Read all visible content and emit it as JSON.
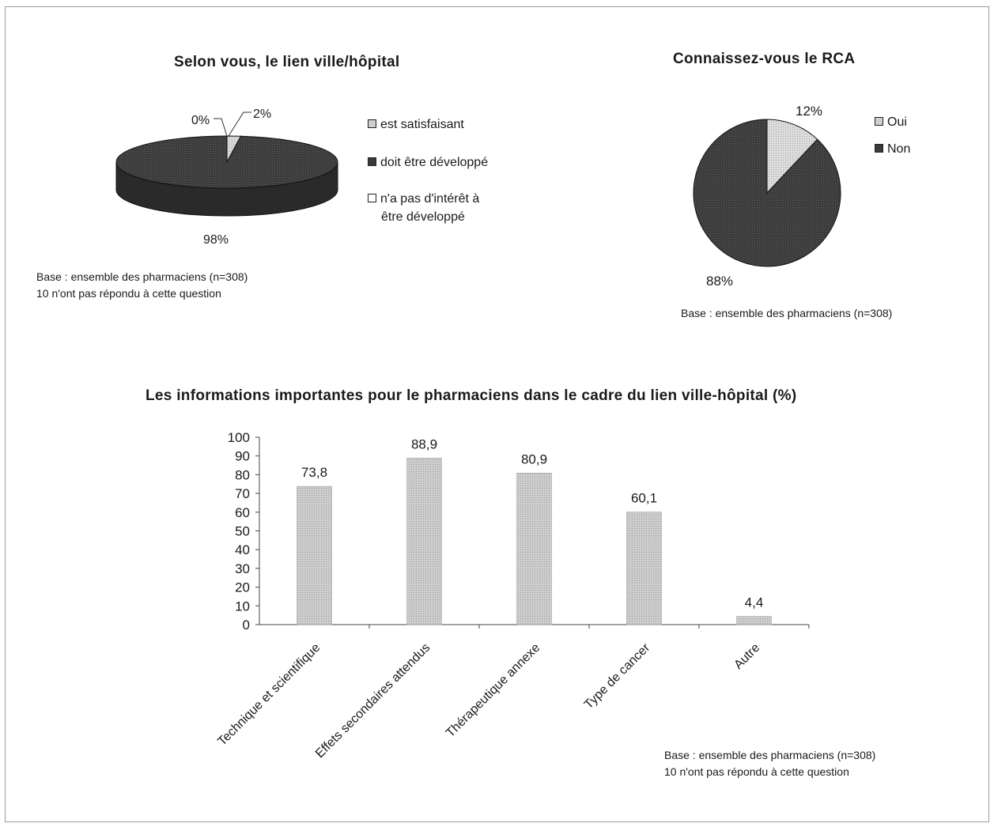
{
  "colors": {
    "light": "#cfcfcf",
    "dark": "#3a3a3a",
    "white": "#ffffff",
    "bar": "#c4c4c4"
  },
  "chart_data": [
    {
      "type": "pie",
      "title": "Selon vous, le lien ville/hôpital",
      "categories": [
        "est satisfaisant",
        "doit être développé",
        "n'a pas d'intérêt à être développé"
      ],
      "values": [
        2,
        98,
        0
      ],
      "data_labels": [
        "2%",
        "98%",
        "0%"
      ],
      "legend_labels": [
        "est satisfaisant",
        "doit être développé",
        "n'a pas d'intérêt à",
        "être développé"
      ],
      "legend_position": "right",
      "note_lines": [
        "Base : ensemble des pharmaciens (n=308)",
        "10 n'ont pas répondu à cette question"
      ]
    },
    {
      "type": "pie",
      "title": "Connaissez-vous le RCA",
      "categories": [
        "Oui",
        "Non"
      ],
      "values": [
        12,
        88
      ],
      "data_labels": [
        "12%",
        "88%"
      ],
      "legend_position": "top-right",
      "note_lines": [
        "Base : ensemble des pharmaciens (n=308)"
      ]
    },
    {
      "type": "bar",
      "title": "Les informations importantes pour le pharmaciens dans le cadre du lien ville-hôpital (%)",
      "categories": [
        "Technique et scientifique",
        "Effets secondaires attendus",
        "Thérapeutique annexe",
        "Type de cancer",
        "Autre"
      ],
      "values": [
        73.8,
        88.9,
        80.9,
        60.1,
        4.4
      ],
      "data_labels": [
        "73,8",
        "88,9",
        "80,9",
        "60,1",
        "4,4"
      ],
      "ylim": [
        0,
        100
      ],
      "yticks": [
        "0",
        "10",
        "20",
        "30",
        "40",
        "50",
        "60",
        "70",
        "80",
        "90",
        "100"
      ],
      "grid": false,
      "note_lines": [
        "Base : ensemble des pharmaciens (n=308)",
        "10 n'ont pas répondu à cette question"
      ]
    }
  ]
}
